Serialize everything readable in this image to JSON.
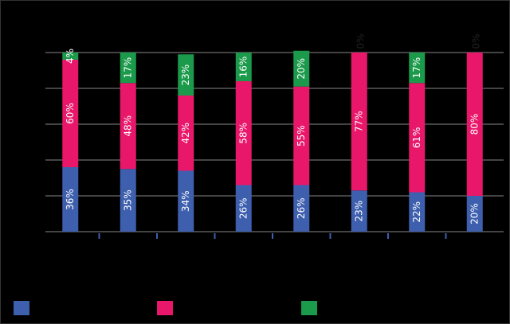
{
  "chart_data": {
    "type": "stacked-bar",
    "categories": [
      null,
      null,
      null,
      null,
      null,
      null,
      null,
      null
    ],
    "series": [
      {
        "color": "#3e5fae",
        "values": [
          36,
          35,
          34,
          26,
          26,
          23,
          22,
          20
        ],
        "value_labels": [
          "36%",
          "35%",
          "34%",
          "26%",
          "26%",
          "23%",
          "22%",
          "20%"
        ]
      },
      {
        "color": "#e8176a",
        "values": [
          60,
          48,
          42,
          58,
          55,
          77,
          61,
          80
        ],
        "value_labels": [
          "60%",
          "48%",
          "42%",
          "58%",
          "55%",
          "77%",
          "61%",
          "80%"
        ]
      },
      {
        "color": "#1a9a4a",
        "values": [
          4,
          17,
          23,
          16,
          20,
          0,
          17,
          0
        ],
        "value_labels": [
          "4%",
          "17%",
          "23%",
          "16%",
          "20%",
          "0%",
          "17%",
          "0%"
        ]
      }
    ],
    "ylim": [
      0,
      100
    ],
    "yticks": [
      0,
      20,
      40,
      60,
      80,
      100
    ],
    "grid": true
  }
}
